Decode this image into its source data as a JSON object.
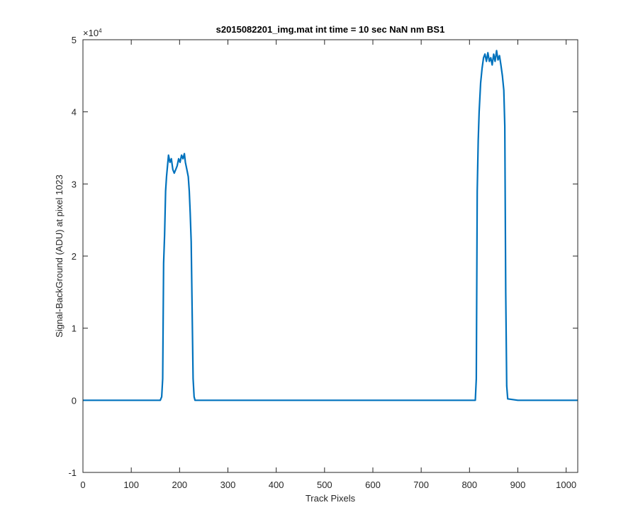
{
  "chart_data": {
    "type": "line",
    "title": "s2015082201_img.mat int time = 10 sec  NaN nm BS1",
    "xlabel": "Track Pixels",
    "ylabel": "Signal-BackGround (ADU) at pixel 1023",
    "xlim": [
      0,
      1024
    ],
    "ylim": [
      -1,
      5
    ],
    "y_exponent_label": "×10",
    "y_exponent_power": "4",
    "x_ticks": [
      0,
      100,
      200,
      300,
      400,
      500,
      600,
      700,
      800,
      900,
      1000
    ],
    "x_tick_labels": [
      "0",
      "100",
      "200",
      "300",
      "400",
      "500",
      "600",
      "700",
      "800",
      "900",
      "1000"
    ],
    "y_ticks": [
      -1,
      0,
      1,
      2,
      3,
      4,
      5
    ],
    "y_tick_labels": [
      "-1",
      "0",
      "1",
      "2",
      "3",
      "4",
      "5"
    ],
    "grid": false,
    "line_color": "#0072BD",
    "series": [
      {
        "x": [
          0,
          100,
          160,
          163,
          165,
          167,
          169,
          171,
          173,
          175,
          177,
          180,
          183,
          186,
          189,
          192,
          195,
          198,
          201,
          204,
          207,
          210,
          212,
          215,
          218,
          220,
          222,
          224,
          226,
          228,
          230,
          232,
          235,
          300,
          400,
          500,
          600,
          700,
          800,
          812,
          814,
          816,
          818,
          820,
          823,
          826,
          829,
          832,
          835,
          838,
          841,
          844,
          847,
          850,
          853,
          856,
          859,
          862,
          865,
          868,
          871,
          873,
          875,
          877,
          879,
          900,
          1000,
          1024
        ],
        "y": [
          0,
          0,
          0,
          0.05,
          0.3,
          1.9,
          2.3,
          2.9,
          3.1,
          3.25,
          3.4,
          3.3,
          3.35,
          3.2,
          3.15,
          3.2,
          3.25,
          3.35,
          3.3,
          3.4,
          3.35,
          3.42,
          3.3,
          3.2,
          3.1,
          2.9,
          2.6,
          2.2,
          1.2,
          0.3,
          0.05,
          0,
          0,
          0,
          0,
          0,
          0,
          0,
          0,
          0,
          0.3,
          2.9,
          3.6,
          4.0,
          4.4,
          4.6,
          4.75,
          4.8,
          4.7,
          4.82,
          4.7,
          4.75,
          4.65,
          4.8,
          4.7,
          4.85,
          4.72,
          4.78,
          4.65,
          4.5,
          4.3,
          3.8,
          1.5,
          0.2,
          0.02,
          0,
          0,
          0
        ]
      }
    ]
  }
}
